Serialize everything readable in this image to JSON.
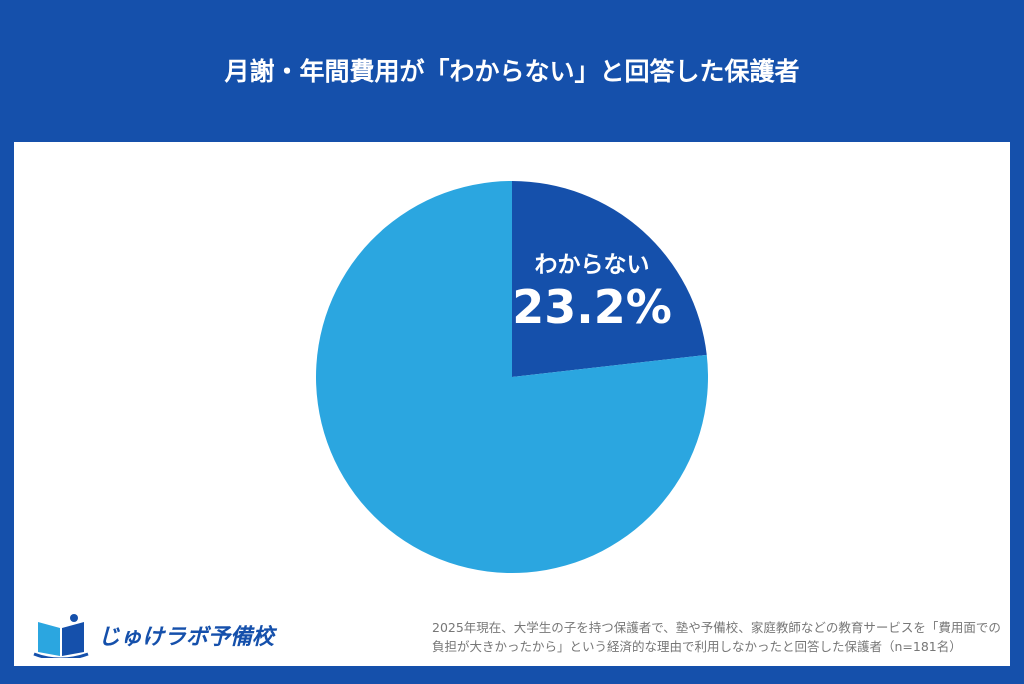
{
  "title": "月謝・年間費用が「わからない」と回答した保護者",
  "chart_data": {
    "type": "pie",
    "slices": [
      {
        "label": "わからない",
        "value": 23.2,
        "value_label": "23.2%",
        "color": "#1550ab"
      },
      {
        "label": "",
        "value": 76.8,
        "color": "#2ba6e0"
      }
    ],
    "start": "top",
    "direction": "clockwise"
  },
  "note": "2025年現在、大学生の子を持つ保護者で、塾や予備校、家庭教師などの教育サービスを「費用面での負担が大きかったから」という経済的な理由で利用しなかったと回答した保護者（n=181名）",
  "logo": {
    "text": "じゅけラボ予備校",
    "icon": "book-logo-icon"
  }
}
